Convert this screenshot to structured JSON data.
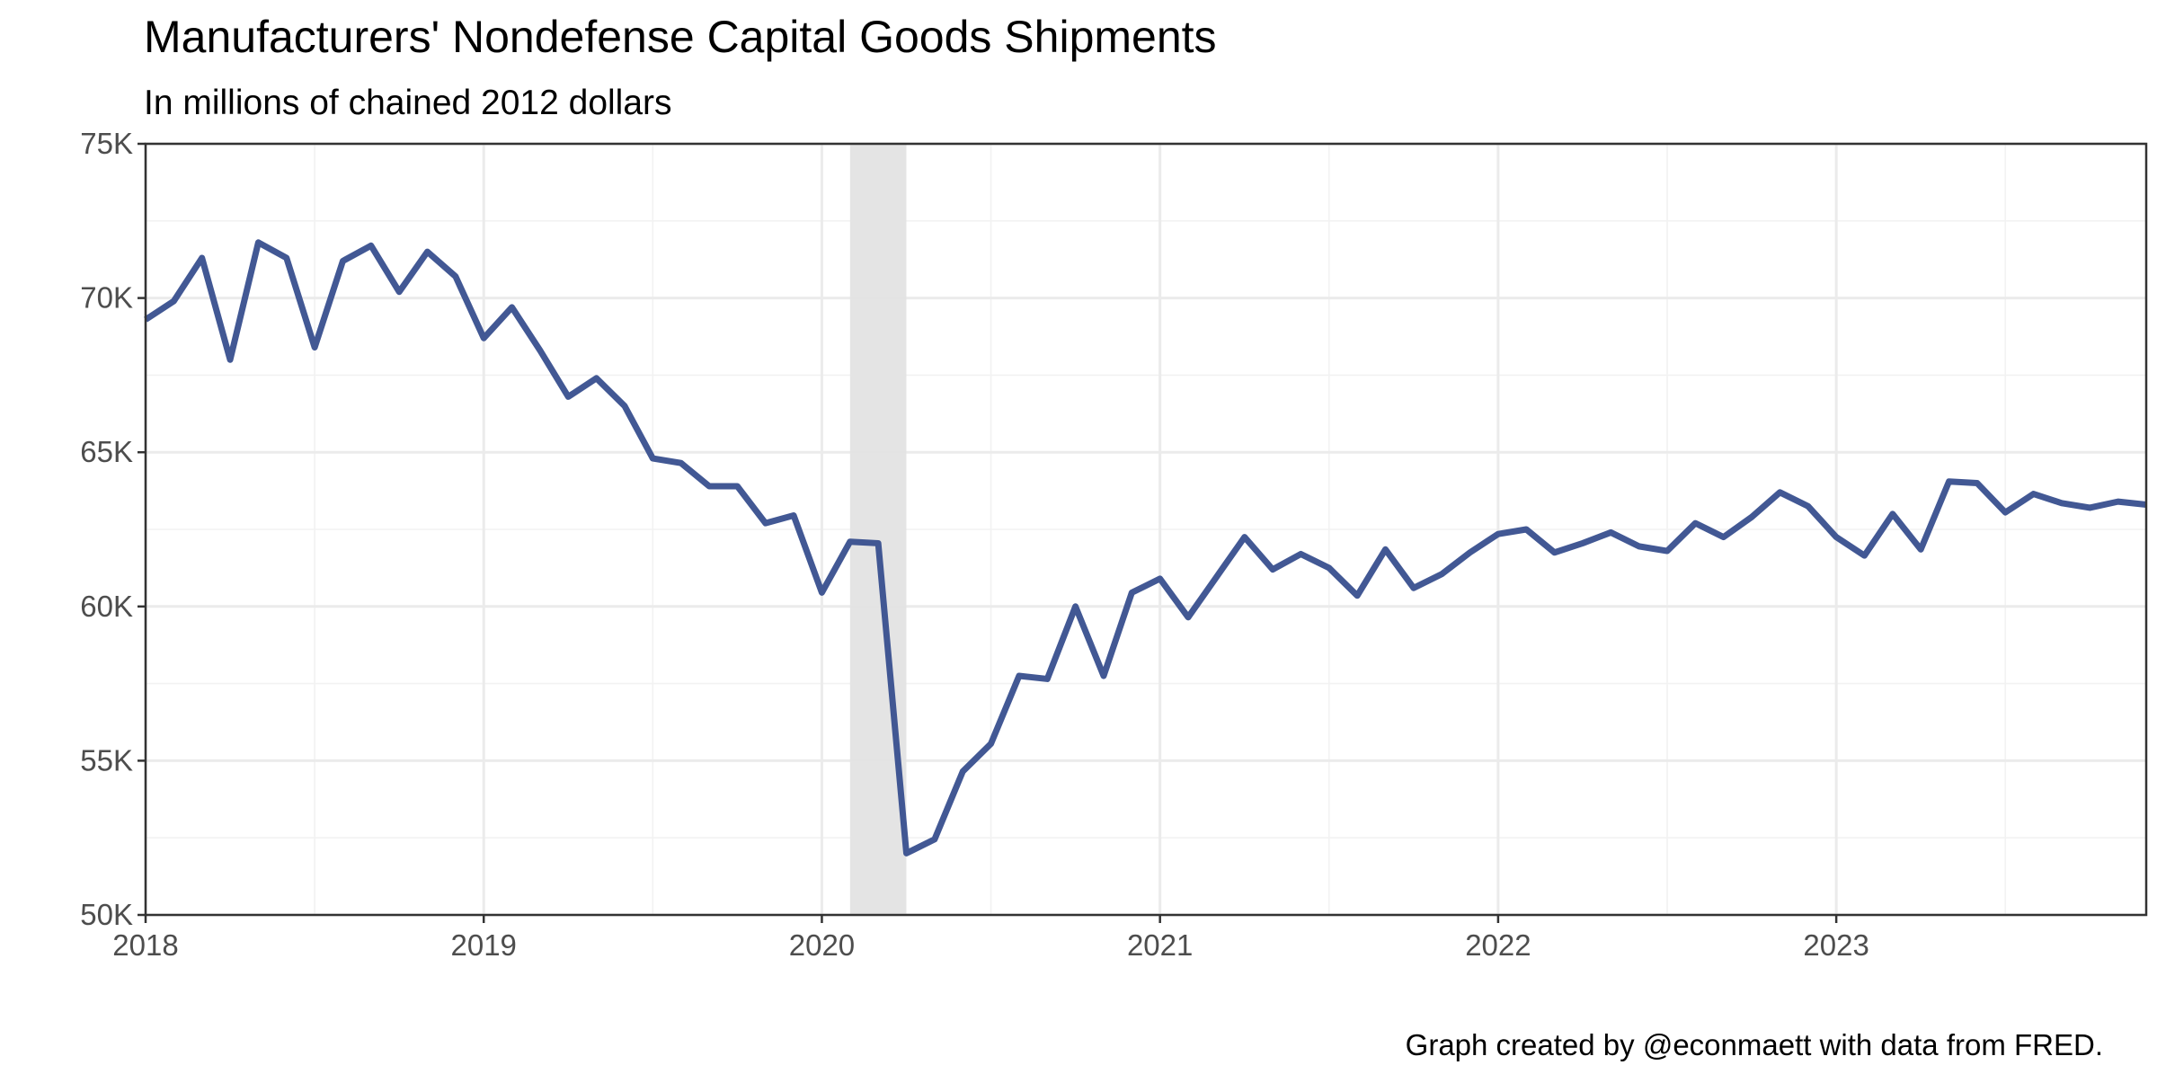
{
  "chart_data": {
    "type": "line",
    "title": "Manufacturers' Nondefense Capital Goods Shipments",
    "subtitle": "In millions of chained 2012 dollars",
    "caption": "Graph created by @econmaett with data from FRED.",
    "xlabel": "",
    "ylabel": "",
    "xlim": [
      "2018-01",
      "2023-12"
    ],
    "ylim": [
      50000,
      75000
    ],
    "x_ticks": [
      {
        "date": "2018-01",
        "label": "2018"
      },
      {
        "date": "2019-01",
        "label": "2019"
      },
      {
        "date": "2020-01",
        "label": "2020"
      },
      {
        "date": "2021-01",
        "label": "2021"
      },
      {
        "date": "2022-01",
        "label": "2022"
      },
      {
        "date": "2023-01",
        "label": "2023"
      }
    ],
    "y_ticks": [
      {
        "value": 50000,
        "label": "50K"
      },
      {
        "value": 55000,
        "label": "55K"
      },
      {
        "value": 60000,
        "label": "60K"
      },
      {
        "value": 65000,
        "label": "65K"
      },
      {
        "value": 70000,
        "label": "70K"
      },
      {
        "value": 75000,
        "label": "75K"
      }
    ],
    "grid": true,
    "legend": "none",
    "recession_shading": {
      "start": "2020-02",
      "end": "2020-04",
      "color": "#e3e3e3"
    },
    "series": [
      {
        "color": "#3a5190",
        "x": [
          "2018-01",
          "2018-02",
          "2018-03",
          "2018-04",
          "2018-05",
          "2018-06",
          "2018-07",
          "2018-08",
          "2018-09",
          "2018-10",
          "2018-11",
          "2018-12",
          "2019-01",
          "2019-02",
          "2019-03",
          "2019-04",
          "2019-05",
          "2019-06",
          "2019-07",
          "2019-08",
          "2019-09",
          "2019-10",
          "2019-11",
          "2019-12",
          "2020-01",
          "2020-02",
          "2020-03",
          "2020-04",
          "2020-05",
          "2020-06",
          "2020-07",
          "2020-08",
          "2020-09",
          "2020-10",
          "2020-11",
          "2020-12",
          "2021-01",
          "2021-02",
          "2021-03",
          "2021-04",
          "2021-05",
          "2021-06",
          "2021-07",
          "2021-08",
          "2021-09",
          "2021-10",
          "2021-11",
          "2021-12",
          "2022-01",
          "2022-02",
          "2022-03",
          "2022-04",
          "2022-05",
          "2022-06",
          "2022-07",
          "2022-08",
          "2022-09",
          "2022-10",
          "2022-11",
          "2022-12",
          "2023-01",
          "2023-02",
          "2023-03",
          "2023-04",
          "2023-05",
          "2023-06",
          "2023-07",
          "2023-08",
          "2023-09",
          "2023-10",
          "2023-11",
          "2023-12"
        ],
        "values": [
          69300,
          69900,
          71300,
          68000,
          71800,
          71300,
          68400,
          71200,
          71700,
          70200,
          71500,
          70700,
          68700,
          69700,
          68300,
          66800,
          67400,
          66500,
          64800,
          64650,
          63900,
          63900,
          62700,
          62950,
          60450,
          62100,
          62050,
          52000,
          52450,
          54650,
          55550,
          57750,
          57650,
          60000,
          57750,
          60450,
          60900,
          59650,
          60950,
          62250,
          61200,
          61700,
          61250,
          60350,
          61850,
          60600,
          61050,
          61750,
          62350,
          62500,
          61750,
          62050,
          62400,
          61950,
          61800,
          62700,
          62250,
          62900,
          63700,
          63250,
          62250,
          61650,
          63000,
          61850,
          64050,
          64000,
          63050,
          63650,
          63350,
          63200,
          63400,
          63300
        ]
      }
    ]
  }
}
